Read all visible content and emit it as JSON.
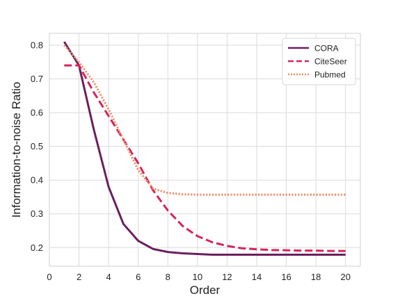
{
  "chart_data": {
    "type": "line",
    "xlabel": "Order",
    "ylabel": "Information-to-noise Ratio",
    "xlim": [
      0,
      21
    ],
    "ylim": [
      0.145,
      0.835
    ],
    "x_ticks": [
      0,
      2,
      4,
      6,
      8,
      10,
      12,
      14,
      16,
      18,
      20
    ],
    "y_ticks": [
      0.2,
      0.3,
      0.4,
      0.5,
      0.6,
      0.7,
      0.8
    ],
    "grid": true,
    "legend_position": "top-right",
    "x": [
      1,
      2,
      3,
      4,
      5,
      6,
      7,
      8,
      9,
      10,
      11,
      12,
      13,
      14,
      15,
      16,
      17,
      18,
      19,
      20
    ],
    "series": [
      {
        "name": "CORA",
        "color": "#6a1f5f",
        "dash": "solid",
        "values": [
          0.81,
          0.74,
          0.55,
          0.38,
          0.27,
          0.22,
          0.196,
          0.187,
          0.183,
          0.181,
          0.179,
          0.179,
          0.179,
          0.179,
          0.179,
          0.179,
          0.179,
          0.179,
          0.179,
          0.179
        ]
      },
      {
        "name": "CiteSeer",
        "color": "#d6245a",
        "dash": "dashed",
        "values": [
          0.74,
          0.74,
          0.66,
          0.59,
          0.52,
          0.45,
          0.37,
          0.31,
          0.264,
          0.234,
          0.216,
          0.205,
          0.198,
          0.195,
          0.193,
          0.192,
          0.191,
          0.191,
          0.19,
          0.19
        ]
      },
      {
        "name": "Pubmed",
        "color": "#f08c66",
        "dash": "dotted",
        "values": [
          0.8,
          0.75,
          0.69,
          0.61,
          0.52,
          0.43,
          0.375,
          0.362,
          0.358,
          0.357,
          0.357,
          0.357,
          0.357,
          0.357,
          0.357,
          0.357,
          0.357,
          0.357,
          0.357,
          0.357
        ]
      }
    ]
  }
}
